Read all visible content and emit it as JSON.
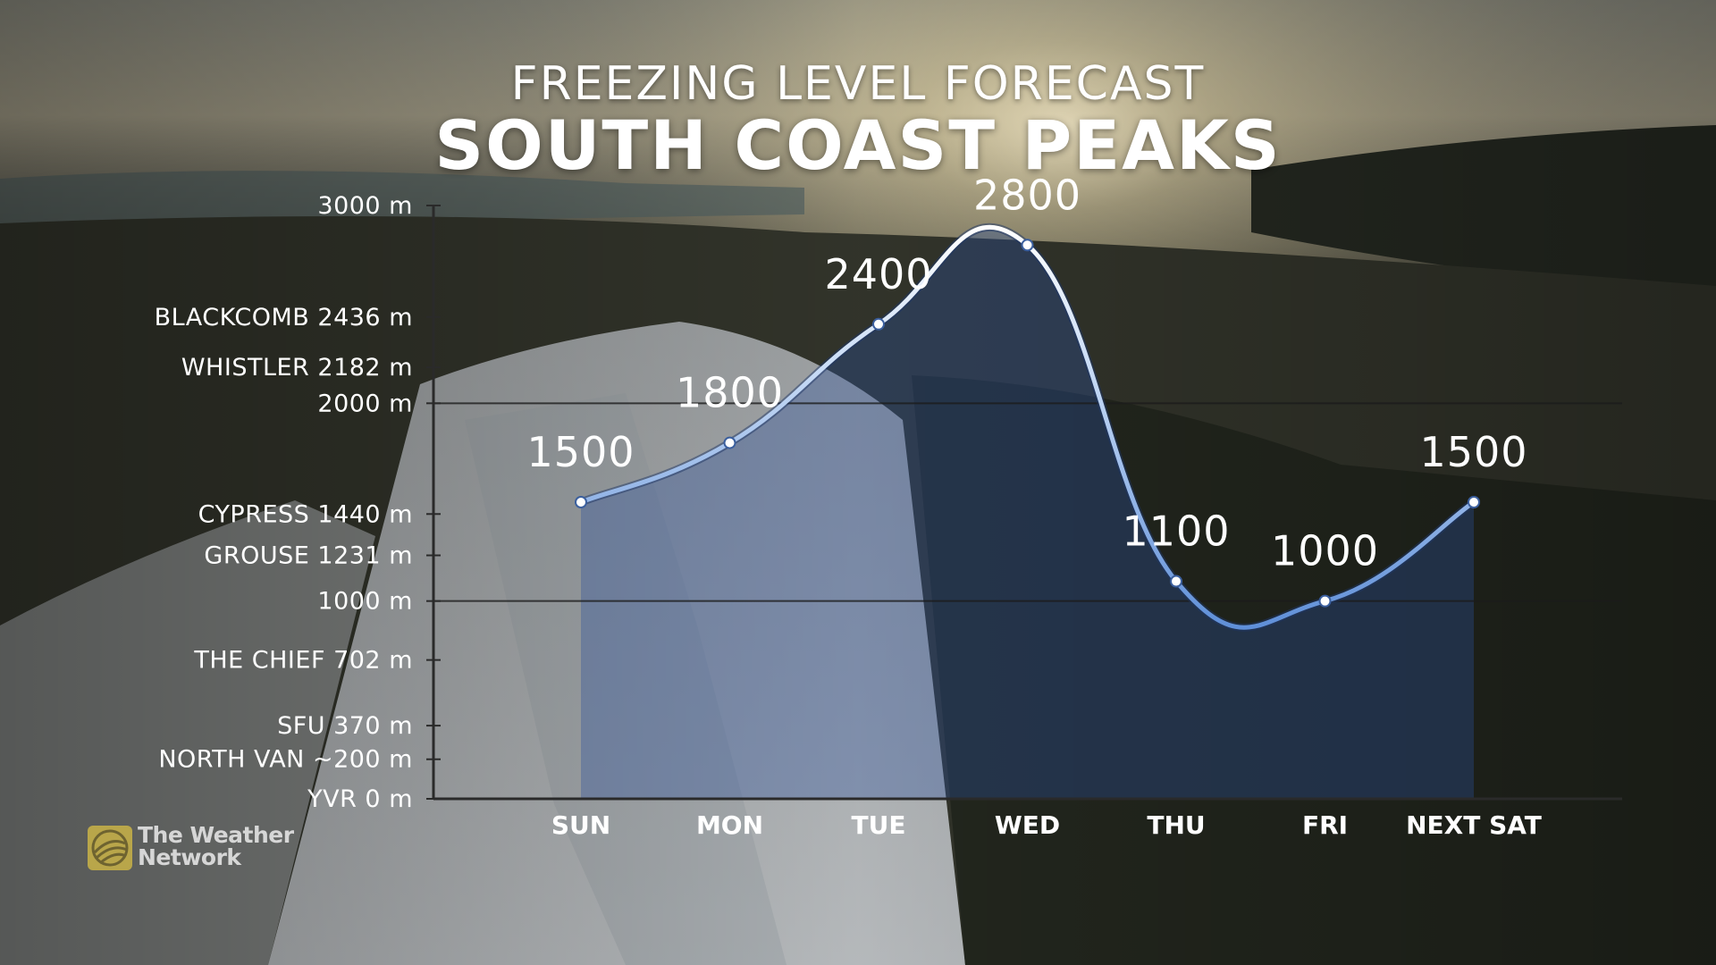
{
  "title": "FREEZING LEVEL FORECAST",
  "subtitle": "SOUTH COAST PEAKS",
  "brand": {
    "name_line1": "The Weather",
    "name_line2": "Network",
    "logo_color": "#b9a64a"
  },
  "colors": {
    "line": "#6f9ee3",
    "line_highlight": "#ffffff",
    "area_fill": "#2a4f9e",
    "text": "#ffffff",
    "reference_line": "#1c1c1c"
  },
  "chart_data": {
    "type": "line",
    "title": "FREEZING LEVEL FORECAST",
    "subtitle": "SOUTH COAST PEAKS",
    "categories": [
      "SUN",
      "MON",
      "TUE",
      "WED",
      "THU",
      "FRI",
      "NEXT SAT"
    ],
    "series": [
      {
        "values": [
          1500,
          1800,
          2400,
          2800,
          1100,
          1000,
          1500
        ]
      }
    ],
    "data_labels": [
      "1500",
      "1800",
      "2400",
      "2800",
      "1100",
      "1000",
      "1500"
    ],
    "ylim": [
      0,
      3000
    ],
    "unit": "m",
    "y_labels": [
      {
        "text": "3000 m",
        "value": 3000
      },
      {
        "text": "BLACKCOMB 2436 m",
        "value": 2436
      },
      {
        "text": "WHISTLER 2182 m",
        "value": 2182
      },
      {
        "text": "2000 m",
        "value": 2000
      },
      {
        "text": "CYPRESS 1440 m",
        "value": 1440
      },
      {
        "text": "GROUSE 1231 m",
        "value": 1231
      },
      {
        "text": "1000 m",
        "value": 1000
      },
      {
        "text": "THE CHIEF 702 m",
        "value": 702
      },
      {
        "text": "SFU 370 m",
        "value": 370
      },
      {
        "text": "NORTH VAN ~200 m",
        "value": 200
      },
      {
        "text": "YVR 0 m",
        "value": 0
      }
    ],
    "reference_lines": [
      2000,
      1000
    ],
    "grid": false,
    "legend": "none"
  }
}
